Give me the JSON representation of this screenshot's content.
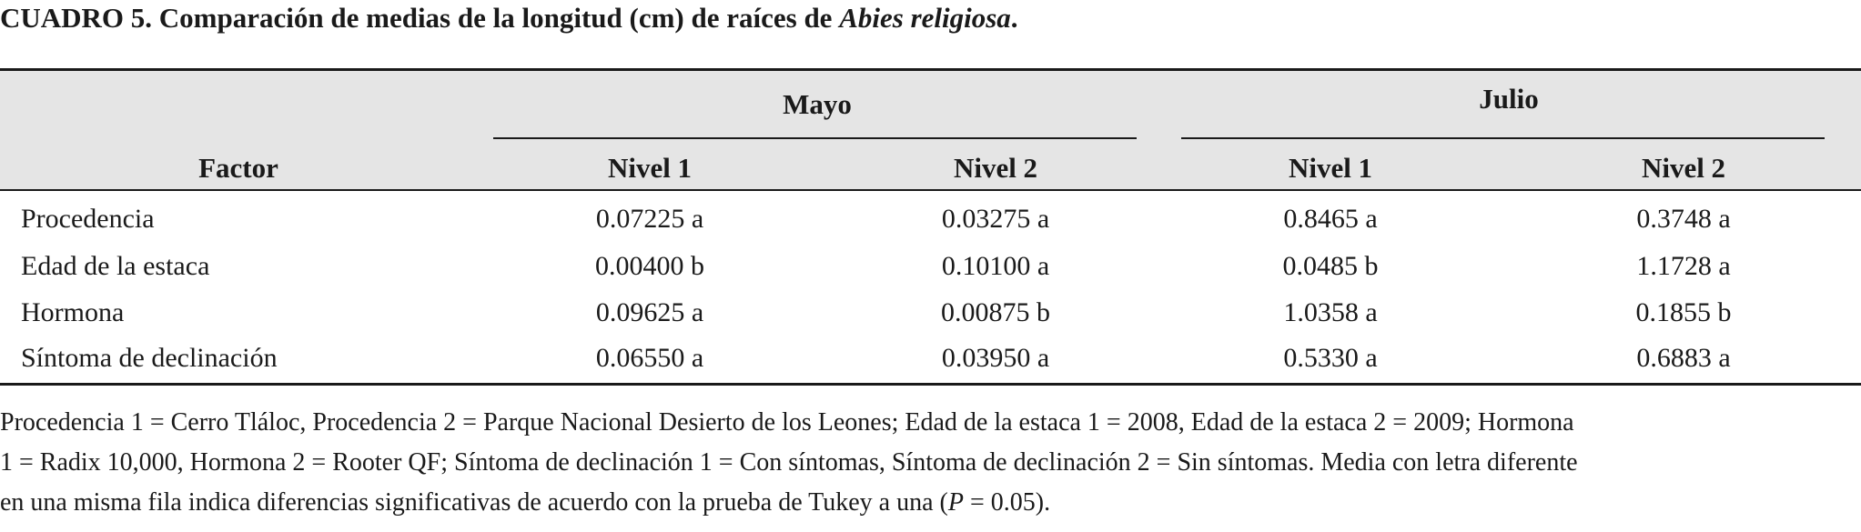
{
  "caption": {
    "prefix": "CUADRO 5. Comparación de medias de la longitud (cm) de raíces de ",
    "species": "Abies religiosa",
    "suffix": "."
  },
  "table": {
    "factor_header": "Factor",
    "groups": [
      "Mayo",
      "Julio"
    ],
    "levels": [
      "Nivel 1",
      "Nivel 2",
      "Nivel 1",
      "Nivel 2"
    ],
    "rows": [
      {
        "factor": "Procedencia",
        "values": [
          "0.07225 a",
          "0.03275 a",
          "0.8465 a",
          "0.3748 a"
        ]
      },
      {
        "factor": "Edad de la estaca",
        "values": [
          "0.00400 b",
          "0.10100 a",
          "0.0485 b",
          "1.1728 a"
        ]
      },
      {
        "factor": "Hormona",
        "values": [
          "0.09625 a",
          "0.00875 b",
          "1.0358 a",
          "0.1855 b"
        ]
      },
      {
        "factor": "Síntoma de declinación",
        "values": [
          "0.06550 a",
          "0.03950 a",
          "0.5330 a",
          "0.6883 a"
        ]
      }
    ]
  },
  "footnote": {
    "line1": "Procedencia 1 = Cerro Tláloc, Procedencia 2 = Parque Nacional Desierto de los Leones; Edad de la estaca 1 = 2008, Edad de la estaca 2 = 2009; Hormona",
    "line2": "1 = Radix 10,000, Hormona 2 = Rooter QF; Síntoma de declinación 1 = Con síntomas, Síntoma de declinación 2 = Sin síntomas. Media con letra diferente",
    "line3_prefix": "en una misma fila indica diferencias significativas de acuerdo con la prueba de Tukey a una (",
    "line3_p": "P",
    "line3_suffix": " = 0.05)."
  }
}
